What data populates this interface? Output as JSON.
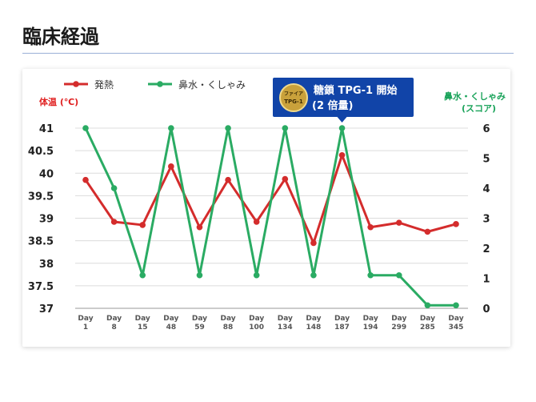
{
  "page": {
    "title": "臨床経過"
  },
  "callout": {
    "line1": "糖鎖 TPG-1 開始",
    "line2": "(2 倍量)",
    "logo_text_top": "ファイア",
    "logo_text_bottom": "TPG-1",
    "color": "#1144a8",
    "at_category": "Day 187"
  },
  "chart_data": {
    "type": "line",
    "categories": [
      "Day 1",
      "Day 8",
      "Day 15",
      "Day 48",
      "Day 59",
      "Day 88",
      "Day 100",
      "Day 134",
      "Day 148",
      "Day 187",
      "Day 194",
      "Day 299",
      "Day 285",
      "Day 345"
    ],
    "series": [
      {
        "name": "発熱",
        "axis": "left",
        "color": "#d42c2c",
        "values": [
          39.85,
          38.92,
          38.85,
          40.15,
          38.8,
          39.85,
          38.92,
          39.87,
          38.45,
          40.4,
          38.8,
          38.9,
          38.7,
          38.87
        ]
      },
      {
        "name": "鼻水・くしゃみ",
        "axis": "right",
        "color": "#2aab63",
        "values": [
          6,
          4,
          1.1,
          6,
          1.1,
          6,
          1.1,
          6,
          1.1,
          6,
          1.1,
          1.1,
          0.1,
          0.1
        ]
      }
    ],
    "y_left": {
      "label": "体温 (℃)",
      "min": 37,
      "max": 41,
      "ticks": [
        "37",
        "37.5",
        "38",
        "38.5",
        "39",
        "39.5",
        "40",
        "40.5",
        "41"
      ]
    },
    "y_right": {
      "label_line1": "鼻水・くしゃみ",
      "label_line2": "(スコア)",
      "min": 0,
      "max": 6,
      "ticks": [
        "0",
        "1",
        "2",
        "3",
        "4",
        "5",
        "6"
      ]
    },
    "grid": true,
    "legend": "top-left"
  }
}
